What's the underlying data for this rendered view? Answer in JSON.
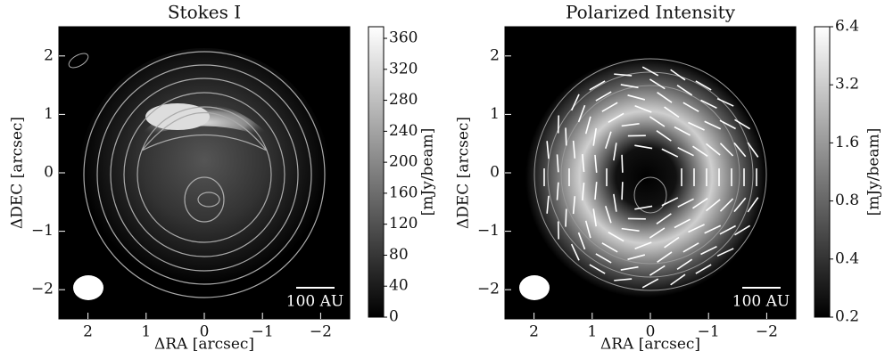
{
  "chart_data": [
    {
      "type": "heatmap",
      "title": "Stokes I",
      "xlabel": "ΔRA [arcsec]",
      "ylabel": "ΔDEC [arcsec]",
      "xlim": [
        2.5,
        -2.5
      ],
      "ylim": [
        -2.5,
        2.5
      ],
      "xticks": [
        2,
        1,
        0,
        {
          "value": -1,
          "label": "−1"
        },
        {
          "value": -2,
          "label": "−2"
        }
      ],
      "yticks": [
        {
          "value": -2,
          "label": "−2"
        },
        {
          "value": -1,
          "label": "−1"
        },
        0,
        1,
        2
      ],
      "scalebar_label": "100 AU",
      "colorbar": {
        "label": "[mJy/beam]",
        "scale": "linear",
        "lim": [
          0,
          375
        ],
        "ticks": [
          0,
          40,
          80,
          120,
          160,
          200,
          240,
          280,
          320,
          360
        ]
      }
    },
    {
      "type": "heatmap",
      "title": "Polarized Intensity",
      "xlabel": "ΔRA [arcsec]",
      "ylabel": "ΔDEC [arcsec]",
      "xlim": [
        2.5,
        -2.5
      ],
      "ylim": [
        -2.5,
        2.5
      ],
      "xticks": [
        2,
        1,
        0,
        {
          "value": -1,
          "label": "−1"
        },
        {
          "value": -2,
          "label": "−2"
        }
      ],
      "yticks": [
        {
          "value": -2,
          "label": "−2"
        },
        {
          "value": -1,
          "label": "−1"
        },
        0,
        1,
        2
      ],
      "scalebar_label": "100 AU",
      "colorbar": {
        "label": "[mJy/beam]",
        "scale": "log",
        "lim": [
          0.2,
          6.4
        ],
        "ticks": [
          0.2,
          0.4,
          0.8,
          1.6,
          3.2,
          6.4
        ]
      }
    }
  ]
}
